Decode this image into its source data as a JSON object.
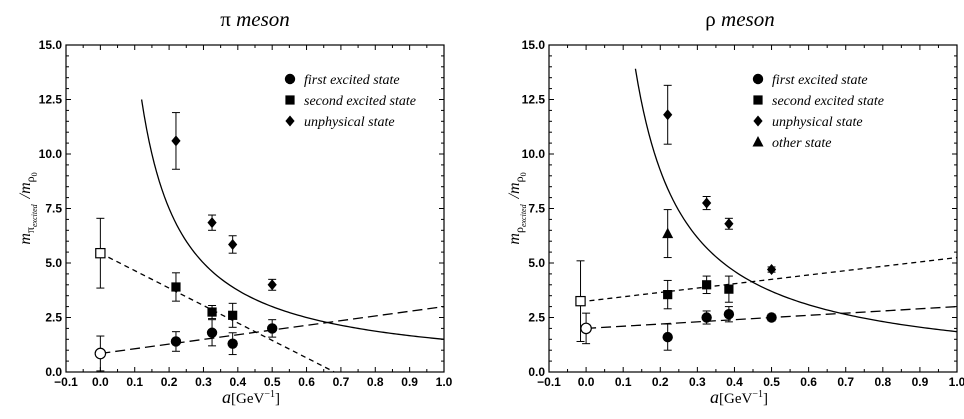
{
  "chart_data": [
    {
      "type": "scatter",
      "title_symbol": "π",
      "title": "meson",
      "xlabel_var": "a",
      "xlabel_unit": "[GeV",
      "xlabel_exp": "−1",
      "xlabel_close": "]",
      "ylabel_num_main": "m",
      "ylabel_num_sub1": "π",
      "ylabel_num_sub2": "excited",
      "ylabel_den_main": "/m",
      "ylabel_den_sub1": "ρ",
      "ylabel_den_sub2": "0",
      "xlim": [
        -0.1,
        1.0
      ],
      "ylim": [
        0,
        15
      ],
      "xticks": [
        "−0.1",
        "0.0",
        "0.1",
        "0.2",
        "0.3",
        "0.4",
        "0.5",
        "0.6",
        "0.7",
        "0.8",
        "0.9",
        "1.0"
      ],
      "yticks": [
        "0.0",
        "2.5",
        "5.0",
        "7.5",
        "10.0",
        "12.5",
        "15.0"
      ],
      "legend": [
        "first excited state",
        "second excited state",
        "unphysical state"
      ],
      "legend_position": "top-right",
      "series": [
        {
          "name": "first excited state",
          "marker": "circle",
          "points": [
            {
              "x": 0.22,
              "y": 1.4,
              "err": 0.45
            },
            {
              "x": 0.325,
              "y": 1.8,
              "err": 0.6
            },
            {
              "x": 0.385,
              "y": 1.3,
              "err": 0.5
            },
            {
              "x": 0.5,
              "y": 2.0,
              "err": 0.4
            }
          ]
        },
        {
          "name": "second excited state",
          "marker": "square",
          "points": [
            {
              "x": 0.22,
              "y": 3.9,
              "err": 0.65
            },
            {
              "x": 0.325,
              "y": 2.75,
              "err": 0.3
            },
            {
              "x": 0.385,
              "y": 2.6,
              "err": 0.55
            }
          ]
        },
        {
          "name": "unphysical state",
          "marker": "diamond",
          "points": [
            {
              "x": 0.22,
              "y": 10.6,
              "err": 1.3
            },
            {
              "x": 0.325,
              "y": 6.85,
              "err": 0.35
            },
            {
              "x": 0.385,
              "y": 5.85,
              "err": 0.4
            },
            {
              "x": 0.5,
              "y": 4.0,
              "err": 0.25
            }
          ]
        },
        {
          "name": "",
          "marker": "open-circle",
          "points": [
            {
              "x": 0.0,
              "y": 0.85,
              "err": 0.8
            }
          ]
        },
        {
          "name": "",
          "marker": "open-square",
          "points": [
            {
              "x": 0.0,
              "y": 5.45,
              "err": 1.6
            }
          ]
        }
      ],
      "fits": [
        {
          "kind": "reciprocal",
          "style": "solid",
          "c": 1.5,
          "x_min": 0.12,
          "x_max": 1.0
        },
        {
          "kind": "linear",
          "style": "long-dash",
          "intercept": 0.85,
          "slope": 2.15,
          "x_min": 0.0,
          "x_max": 1.0
        },
        {
          "kind": "linear",
          "style": "short-dash",
          "intercept": 5.45,
          "slope": -8.0,
          "x_min": 0.0,
          "x_max": 0.68
        }
      ]
    },
    {
      "type": "scatter",
      "title_symbol": "ρ",
      "title": "meson",
      "xlabel_var": "a",
      "xlabel_unit": "[GeV",
      "xlabel_exp": "−1",
      "xlabel_close": "]",
      "ylabel_num_main": "m",
      "ylabel_num_sub1": "ρ",
      "ylabel_num_sub2": "excited",
      "ylabel_den_main": "/m",
      "ylabel_den_sub1": "ρ",
      "ylabel_den_sub2": "0",
      "xlim": [
        -0.1,
        1.0
      ],
      "ylim": [
        0,
        15
      ],
      "xticks": [
        "−0.1",
        "0.0",
        "0.1",
        "0.2",
        "0.3",
        "0.4",
        "0.5",
        "0.6",
        "0.7",
        "0.8",
        "0.9",
        "1.0"
      ],
      "yticks": [
        "0.0",
        "2.5",
        "5.0",
        "7.5",
        "10.0",
        "12.5",
        "15.0"
      ],
      "legend": [
        "first excited state",
        "second excited state",
        "unphysical state",
        "other state"
      ],
      "legend_position": "top-right",
      "series": [
        {
          "name": "first excited state",
          "marker": "circle",
          "points": [
            {
              "x": 0.22,
              "y": 1.6,
              "err": 0.6
            },
            {
              "x": 0.325,
              "y": 2.5,
              "err": 0.3
            },
            {
              "x": 0.385,
              "y": 2.65,
              "err": 0.35
            },
            {
              "x": 0.5,
              "y": 2.5,
              "err": 0.15
            }
          ]
        },
        {
          "name": "second excited state",
          "marker": "square",
          "points": [
            {
              "x": 0.22,
              "y": 3.55,
              "err": 0.65
            },
            {
              "x": 0.325,
              "y": 4.0,
              "err": 0.4
            },
            {
              "x": 0.385,
              "y": 3.8,
              "err": 0.6
            }
          ]
        },
        {
          "name": "unphysical state",
          "marker": "diamond",
          "points": [
            {
              "x": 0.22,
              "y": 11.8,
              "err": 1.35
            },
            {
              "x": 0.325,
              "y": 7.75,
              "err": 0.3
            },
            {
              "x": 0.385,
              "y": 6.8,
              "err": 0.25
            },
            {
              "x": 0.5,
              "y": 4.7,
              "err": 0.12
            }
          ]
        },
        {
          "name": "other state",
          "marker": "triangle",
          "points": [
            {
              "x": 0.22,
              "y": 6.35,
              "err": 1.1
            }
          ]
        },
        {
          "name": "",
          "marker": "open-circle",
          "points": [
            {
              "x": 0.0,
              "y": 2.0,
              "err": 0.7
            }
          ]
        },
        {
          "name": "",
          "marker": "open-square",
          "points": [
            {
              "x": -0.015,
              "y": 3.25,
              "err": 1.85
            }
          ]
        }
      ],
      "fits": [
        {
          "kind": "reciprocal",
          "style": "solid",
          "c": 1.85,
          "x_min": 0.133,
          "x_max": 1.0
        },
        {
          "kind": "linear",
          "style": "long-dash",
          "intercept": 2.0,
          "slope": 1.0,
          "x_min": 0.0,
          "x_max": 1.0
        },
        {
          "kind": "linear",
          "style": "short-dash",
          "intercept": 3.25,
          "slope": 2.0,
          "x_min": -0.015,
          "x_max": 1.0
        }
      ]
    }
  ]
}
